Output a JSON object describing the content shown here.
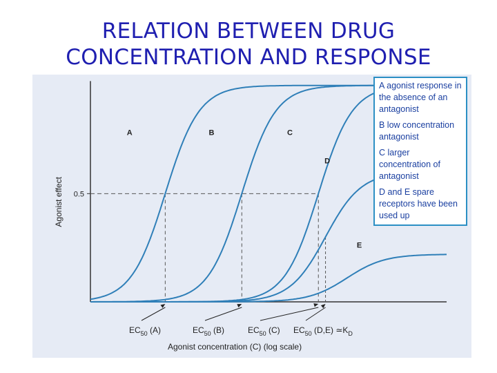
{
  "slide": {
    "title_lines": [
      "RELATION BETWEEN DRUG",
      "CONCENTRATION AND RESPONSE"
    ]
  },
  "legend_box": {
    "notes": [
      "A agonist response in the absence of an antagonist",
      "B low concentration antagonist",
      "C larger concentration of antagonist",
      "D and E spare receptors have been used up"
    ]
  },
  "colors": {
    "curve": "#2f7fb8",
    "guide": "#555555",
    "axis": "#333333",
    "title": "#1f1fb0",
    "background": "#e6ebf5",
    "box_border": "#2b8fc4"
  },
  "chart_data": {
    "type": "line",
    "title": "",
    "xlabel": "Agonist concentration (C) (log scale)",
    "ylabel": "Agonist effect",
    "x_scale": "log",
    "xlim": [
      0,
      10
    ],
    "ylim": [
      0,
      1.05
    ],
    "y_ticks": [
      {
        "value": 0.5,
        "label": "0.5"
      }
    ],
    "grid": false,
    "series": [
      {
        "name": "A",
        "type": "sigmoid",
        "max": 1.0,
        "midpoint": 2.1,
        "slope": 2.1
      },
      {
        "name": "B",
        "type": "sigmoid",
        "max": 1.0,
        "midpoint": 4.25,
        "slope": 2.1
      },
      {
        "name": "C",
        "type": "sigmoid",
        "max": 1.0,
        "midpoint": 6.4,
        "slope": 2.1
      },
      {
        "name": "D",
        "type": "sigmoid",
        "max": 0.6,
        "midpoint": 6.6,
        "slope": 2.0
      },
      {
        "name": "E",
        "type": "sigmoid",
        "max": 0.22,
        "midpoint": 7.2,
        "slope": 1.9
      }
    ],
    "x_markers": [
      {
        "label": "EC50 (A)",
        "main": "EC",
        "sub": "50",
        "tail": " (A)",
        "x": 2.1
      },
      {
        "label": "EC50 (B)",
        "main": "EC",
        "sub": "50",
        "tail": " (B)",
        "x": 4.25
      },
      {
        "label": "EC50 (C)",
        "main": "EC",
        "sub": "50",
        "tail": " (C)",
        "x": 6.4
      },
      {
        "label": "EC50 (D,E) ≃KD",
        "main": "EC",
        "sub": "50",
        "tail": " (D,E) ≃K",
        "tail_sub": "D",
        "x": 6.6
      }
    ],
    "half_effect_level": 0.5
  }
}
